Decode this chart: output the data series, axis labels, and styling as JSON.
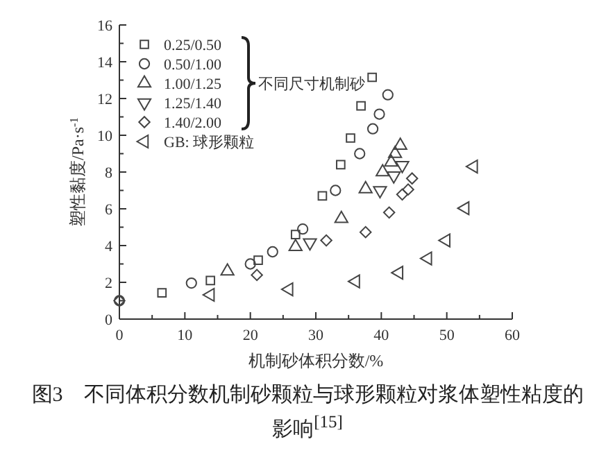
{
  "chart_data": {
    "type": "scatter",
    "xlabel": "机制砂体积分数/%",
    "ylabel": "塑性黏度/Pa·s$^{-1}$",
    "xlim": [
      0,
      60
    ],
    "ylim": [
      0,
      16
    ],
    "xticks": [
      0,
      {
        "value": 5,
        "label": null
      },
      10,
      {
        "value": 15,
        "label": null
      },
      20,
      {
        "value": 25,
        "label": null
      },
      30,
      {
        "value": 35,
        "label": null
      },
      40,
      {
        "value": 45,
        "label": null
      },
      50,
      {
        "value": 55,
        "label": null
      },
      60
    ],
    "yticks": [
      0,
      {
        "value": 1,
        "label": null
      },
      2,
      {
        "value": 3,
        "label": null
      },
      4,
      {
        "value": 5,
        "label": null
      },
      6,
      {
        "value": 7,
        "label": null
      },
      8,
      {
        "value": 9,
        "label": null
      },
      10,
      {
        "value": 11,
        "label": null
      },
      12,
      {
        "value": 13,
        "label": null
      },
      14,
      {
        "value": 15,
        "label": null
      },
      16
    ],
    "grid": false,
    "legend": "top left",
    "annotations": [
      "不同尺寸机制砂",
      "图3　不同体积分数机制砂颗粒与球形颗粒对浆体塑性粘度的影响$^{[15]}$"
    ],
    "series": [
      {
        "name": "0.25/0.50",
        "color": "#444444",
        "marker": "square",
        "x": [
          6.5,
          13.9,
          21.2,
          26.9,
          31,
          33.8,
          35.3,
          36.9,
          38.6
        ],
        "values": [
          1.43,
          2.1,
          3.2,
          4.6,
          6.7,
          8.4,
          9.85,
          11.6,
          13.15
        ]
      },
      {
        "name": "0.50/1.00",
        "color": "#444444",
        "marker": "circle",
        "x": [
          0,
          11,
          20,
          23.4,
          28,
          33,
          36.7,
          38.7,
          39.7,
          41
        ],
        "values": [
          1.0,
          1.96,
          3.0,
          3.66,
          4.9,
          7.0,
          9.0,
          10.35,
          11.15,
          12.2
        ]
      },
      {
        "name": "1.00/1.25",
        "color": "#444444",
        "marker": "triangle",
        "x": [
          16.5,
          26.9,
          33.9,
          37.6,
          40.2,
          41.5,
          42.1,
          42.9
        ],
        "values": [
          2.6,
          3.93,
          5.46,
          7.08,
          8.0,
          8.53,
          9.0,
          9.44
        ]
      },
      {
        "name": "1.25/1.40",
        "color": "#444444",
        "marker": "triangle-down",
        "x": [
          29.1,
          39.8,
          41.9,
          43.2
        ],
        "values": [
          4.16,
          7.0,
          7.8,
          8.37
        ]
      },
      {
        "name": "1.40/2.00",
        "color": "#444444",
        "marker": "diamond",
        "x": [
          0,
          21,
          31.6,
          37.6,
          41.2,
          43.2,
          44.1,
          44.7
        ],
        "values": [
          1.0,
          2.4,
          4.28,
          4.73,
          5.8,
          6.78,
          7.05,
          7.65
        ]
      },
      {
        "name": "GB: 球形颗粒",
        "color": "#444444",
        "marker": "triangle-left",
        "x": [
          13.9,
          25.9,
          36.1,
          42.7,
          47.1,
          49.9,
          52.8,
          54.1
        ],
        "values": [
          1.32,
          1.62,
          2.05,
          2.52,
          3.3,
          4.28,
          6.03,
          8.3
        ]
      }
    ]
  }
}
